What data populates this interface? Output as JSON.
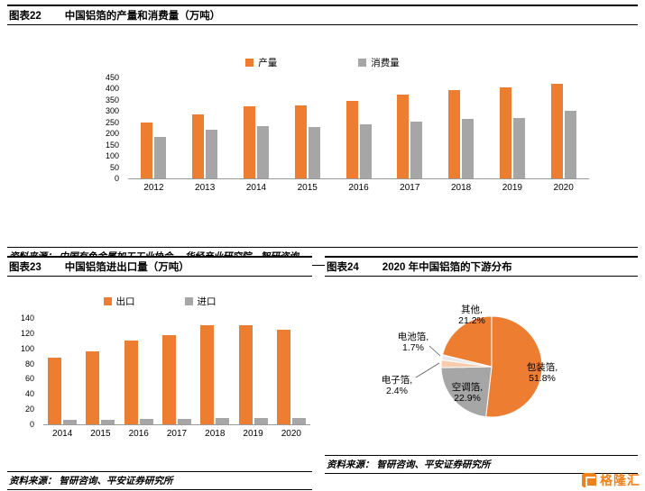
{
  "watermark": {
    "text": "格隆汇"
  },
  "colors": {
    "accent_orange": "#ED7D31",
    "series_gray": "#A6A6A6",
    "watermark_orange": "#F0821E"
  },
  "sections": {
    "chart22": {
      "label": "图表22",
      "title": "中国铝箔的产量和消费量（万吨）",
      "source_label": "资料来源：",
      "source_text": "中国有色金属加工工业协会， 华经产业研究院，智研咨询"
    },
    "chart23": {
      "label": "图表23",
      "title": "中国铝箔进出口量（万吨）",
      "source_label": "资料来源：",
      "source_text": "智研咨询、平安证券研究所"
    },
    "chart24": {
      "label": "图表24",
      "title": "2020 年中国铝箔的下游分布",
      "source_label": "资料来源：",
      "source_text": "智研咨询、平安证券研究所"
    }
  },
  "chart_data": [
    {
      "id": "aluminum-foil-production-consumption",
      "type": "bar",
      "title": "中国铝箔的产量和消费量（万吨）",
      "categories": [
        "2012",
        "2013",
        "2014",
        "2015",
        "2016",
        "2017",
        "2018",
        "2019",
        "2020"
      ],
      "series": [
        {
          "name": "产量",
          "color": "#ED7D31",
          "values": [
            250,
            285,
            320,
            325,
            345,
            375,
            395,
            405,
            420
          ]
        },
        {
          "name": "消费量",
          "color": "#A6A6A6",
          "values": [
            185,
            215,
            235,
            230,
            240,
            255,
            265,
            270,
            300
          ]
        }
      ],
      "ylim": [
        0,
        450
      ],
      "ytick_step": 50,
      "legend_position": "top",
      "grid": false
    },
    {
      "id": "aluminum-foil-import-export",
      "type": "bar",
      "title": "中国铝箔进出口量（万吨）",
      "categories": [
        "2014",
        "2015",
        "2016",
        "2017",
        "2018",
        "2019",
        "2020"
      ],
      "series": [
        {
          "name": "出口",
          "color": "#ED7D31",
          "values": [
            88,
            96,
            110,
            118,
            130,
            130,
            125
          ]
        },
        {
          "name": "进口",
          "color": "#A6A6A6",
          "values": [
            6,
            6,
            7,
            7,
            8,
            8,
            8
          ]
        }
      ],
      "ylim": [
        0,
        140
      ],
      "ytick_step": 20,
      "legend_position": "top",
      "grid": false
    },
    {
      "id": "aluminum-foil-downstream-2020",
      "type": "pie",
      "title": "2020 年中国铝箔的下游分布",
      "start_angle_deg": 0,
      "direction": "clockwise",
      "slices": [
        {
          "label": "包装箔",
          "pct": "51.8%",
          "value": 51.8,
          "color": "#ED7D31"
        },
        {
          "label": "空调箔",
          "pct": "22.9%",
          "value": 22.9,
          "color": "#A6A6A6"
        },
        {
          "label": "电子箔",
          "pct": "2.4%",
          "value": 2.4,
          "color": "#F8CBAD"
        },
        {
          "label": "电池箔",
          "pct": "1.7%",
          "value": 1.7,
          "color": "#E9E9E9"
        },
        {
          "label": "其他",
          "pct": "21.2%",
          "value": 21.2,
          "color": "#ED7D31"
        }
      ]
    }
  ]
}
